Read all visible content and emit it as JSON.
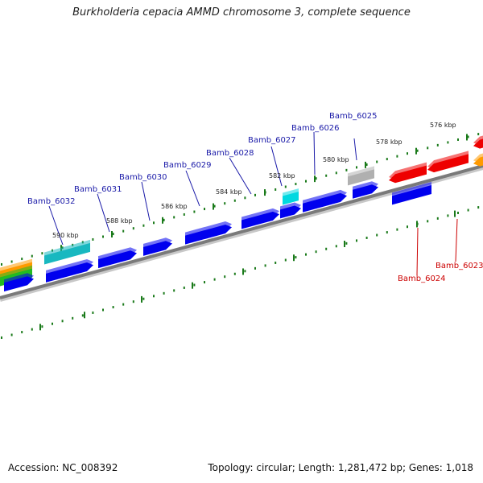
{
  "title": "Burkholderia cepacia AMMD chromosome 3, complete sequence",
  "footer": {
    "accession": "Accession: NC_008392",
    "summary": "Topology: circular; Length: 1,281,472 bp; Genes: 1,018"
  },
  "scale_labels": [
    "576 kbp",
    "578 kbp",
    "580 kbp",
    "582 kbp",
    "584 kbp",
    "586 kbp",
    "588 kbp",
    "590 kbp"
  ],
  "gene_labels": [
    {
      "text": "Bamb_6025",
      "strand": "forward"
    },
    {
      "text": "Bamb_6026",
      "strand": "forward"
    },
    {
      "text": "Bamb_6027",
      "strand": "forward"
    },
    {
      "text": "Bamb_6028",
      "strand": "forward"
    },
    {
      "text": "Bamb_6029",
      "strand": "forward"
    },
    {
      "text": "Bamb_6030",
      "strand": "forward"
    },
    {
      "text": "Bamb_6031",
      "strand": "forward"
    },
    {
      "text": "Bamb_6032",
      "strand": "forward"
    },
    {
      "text": "Bamb_6024",
      "strand": "reverse"
    },
    {
      "text": "Bamb_6023",
      "strand": "reverse"
    }
  ],
  "colors": {
    "forward_label": "#1a1aa8",
    "reverse_label": "#cc0000",
    "backbone": "#808080",
    "tick": "#1a7a1a",
    "gene_blue": "#0000ee",
    "gene_red": "#ee0000",
    "gene_cyan": "#00d8e0",
    "gene_teal": "#18b8c0",
    "gene_gray": "#b0b0b0",
    "gene_orange": "#ff9a00",
    "gene_green": "#22bb22"
  }
}
